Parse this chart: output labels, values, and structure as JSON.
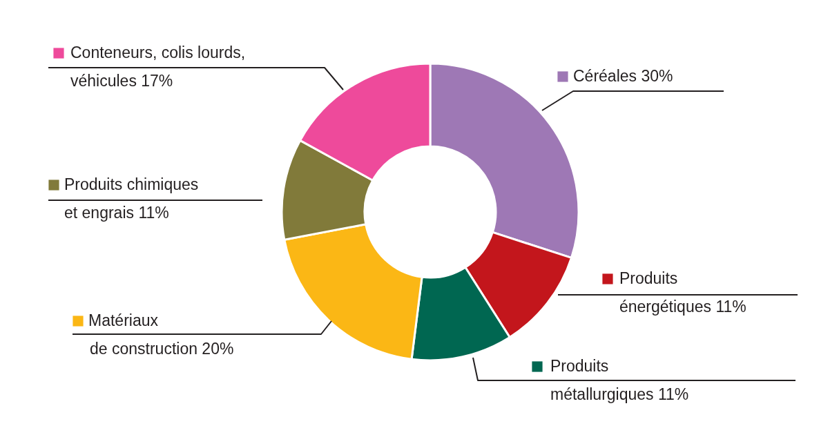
{
  "chart_data": {
    "type": "donut",
    "categories": [
      "Céréales",
      "Produits énergétiques",
      "Produits métallurgiques",
      "Matériaux de construction",
      "Produits chimiques et engrais",
      "Conteneurs, colis lourds, véhicules"
    ],
    "values": [
      30,
      11,
      11,
      20,
      11,
      17
    ],
    "colors": [
      "#9e78b5",
      "#c3161c",
      "#006751",
      "#fbb715",
      "#817a3a",
      "#ee4a9b"
    ],
    "value_labels": [
      "30%",
      "11%",
      "11%",
      "20%",
      "11%",
      "17%"
    ],
    "legend": "left"
  }
}
